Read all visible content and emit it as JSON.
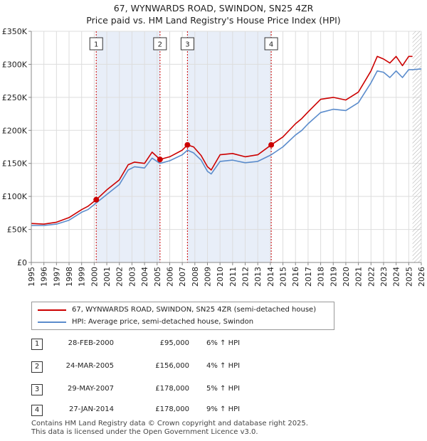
{
  "title_line1": "67, WYNWARDS ROAD, SWINDON, SN25 4ZR",
  "title_line2": "Price paid vs. HM Land Registry's House Price Index (HPI)",
  "legend": {
    "property_label": "67, WYNWARDS ROAD, SWINDON, SN25 4ZR (semi-detached house)",
    "hpi_label": "HPI: Average price, semi-detached house, Swindon",
    "property_color": "#cc0000",
    "hpi_color": "#5b8ccc"
  },
  "colors": {
    "shade": "#e8eef8",
    "marker": "#cc0000",
    "hatch": "#aaaaaa"
  },
  "transactions": [
    {
      "num": "1",
      "date": "28-FEB-2000",
      "price": "£95,000",
      "delta": "6% ↑ HPI"
    },
    {
      "num": "2",
      "date": "24-MAR-2005",
      "price": "£156,000",
      "delta": "4% ↑ HPI"
    },
    {
      "num": "3",
      "date": "29-MAY-2007",
      "price": "£178,000",
      "delta": "5% ↑ HPI"
    },
    {
      "num": "4",
      "date": "27-JAN-2014",
      "price": "£178,000",
      "delta": "9% ↑ HPI"
    }
  ],
  "footer_line1": "Contains HM Land Registry data © Crown copyright and database right 2025.",
  "footer_line2": "This data is licensed under the Open Government Licence v3.0.",
  "chart_data": {
    "type": "line",
    "title": "Price paid vs. HM Land Registry's House Price Index (HPI)",
    "xlabel": "",
    "ylabel": "",
    "xlim": [
      1995,
      2026
    ],
    "ylim": [
      0,
      350000
    ],
    "grid": true,
    "legend_position": "below",
    "x_ticks": [
      "1995",
      "1996",
      "1997",
      "1998",
      "1999",
      "2000",
      "2001",
      "2002",
      "2003",
      "2004",
      "2005",
      "2006",
      "2007",
      "2008",
      "2009",
      "2010",
      "2011",
      "2012",
      "2013",
      "2014",
      "2015",
      "2016",
      "2017",
      "2018",
      "2019",
      "2020",
      "2021",
      "2022",
      "2023",
      "2024",
      "2025",
      "2026"
    ],
    "y_ticks": [
      {
        "value": 0,
        "label": "£0"
      },
      {
        "value": 50000,
        "label": "£50K"
      },
      {
        "value": 100000,
        "label": "£100K"
      },
      {
        "value": 150000,
        "label": "£150K"
      },
      {
        "value": 200000,
        "label": "£200K"
      },
      {
        "value": 250000,
        "label": "£250K"
      },
      {
        "value": 300000,
        "label": "£300K"
      },
      {
        "value": 350000,
        "label": "£350K"
      }
    ],
    "shaded_regions": [
      [
        2000.16,
        2005.23
      ],
      [
        2007.41,
        2014.07
      ]
    ],
    "future_start": 2025.3,
    "sales": [
      {
        "label": "1",
        "x": 2000.16,
        "y": 95000
      },
      {
        "label": "2",
        "x": 2005.23,
        "y": 156000
      },
      {
        "label": "3",
        "x": 2007.41,
        "y": 178000
      },
      {
        "label": "4",
        "x": 2014.07,
        "y": 178000
      }
    ],
    "series": [
      {
        "name": "67, WYNWARDS ROAD, SWINDON, SN25 4ZR (semi-detached house)",
        "x": [
          1995,
          1996,
          1997,
          1998,
          1999,
          1999.5,
          2000.16,
          2001,
          2002,
          2002.7,
          2003.2,
          2004,
          2004.6,
          2005.23,
          2006,
          2007,
          2007.41,
          2007.9,
          2008.5,
          2009,
          2009.3,
          2010,
          2011,
          2012,
          2013,
          2014.07,
          2015,
          2016,
          2016.5,
          2017,
          2018,
          2019,
          2020,
          2021,
          2022,
          2022.5,
          2023,
          2023.5,
          2024,
          2024.5,
          2025,
          2025.3
        ],
        "values": [
          59000,
          58000,
          61000,
          68000,
          80000,
          85000,
          95000,
          110000,
          125000,
          148000,
          152000,
          150000,
          167000,
          156000,
          160000,
          170000,
          178000,
          175000,
          162000,
          145000,
          140000,
          163000,
          165000,
          160000,
          163000,
          178000,
          190000,
          210000,
          218000,
          228000,
          247000,
          250000,
          246000,
          258000,
          290000,
          312000,
          308000,
          302000,
          312000,
          298000,
          312000,
          312000
        ]
      },
      {
        "name": "HPI: Average price, semi-detached house, Swindon",
        "x": [
          1995,
          1996,
          1997,
          1998,
          1999,
          1999.5,
          2000.16,
          2001,
          2002,
          2002.7,
          2003.2,
          2004,
          2004.6,
          2005.23,
          2006,
          2007,
          2007.41,
          2007.9,
          2008.5,
          2009,
          2009.3,
          2010,
          2011,
          2012,
          2013,
          2014.07,
          2015,
          2016,
          2016.5,
          2017,
          2018,
          2019,
          2020,
          2021,
          2022,
          2022.5,
          2023,
          2023.5,
          2024,
          2024.5,
          2025,
          2025.3,
          2026
        ],
        "values": [
          56000,
          56000,
          58000,
          64000,
          76000,
          80000,
          90000,
          103000,
          118000,
          140000,
          145000,
          143000,
          158000,
          150000,
          154000,
          163000,
          170000,
          166000,
          155000,
          138000,
          134000,
          153000,
          155000,
          151000,
          153000,
          163000,
          175000,
          193000,
          200000,
          210000,
          227000,
          232000,
          230000,
          242000,
          272000,
          290000,
          288000,
          280000,
          290000,
          280000,
          292000,
          292000,
          293000
        ]
      }
    ]
  }
}
